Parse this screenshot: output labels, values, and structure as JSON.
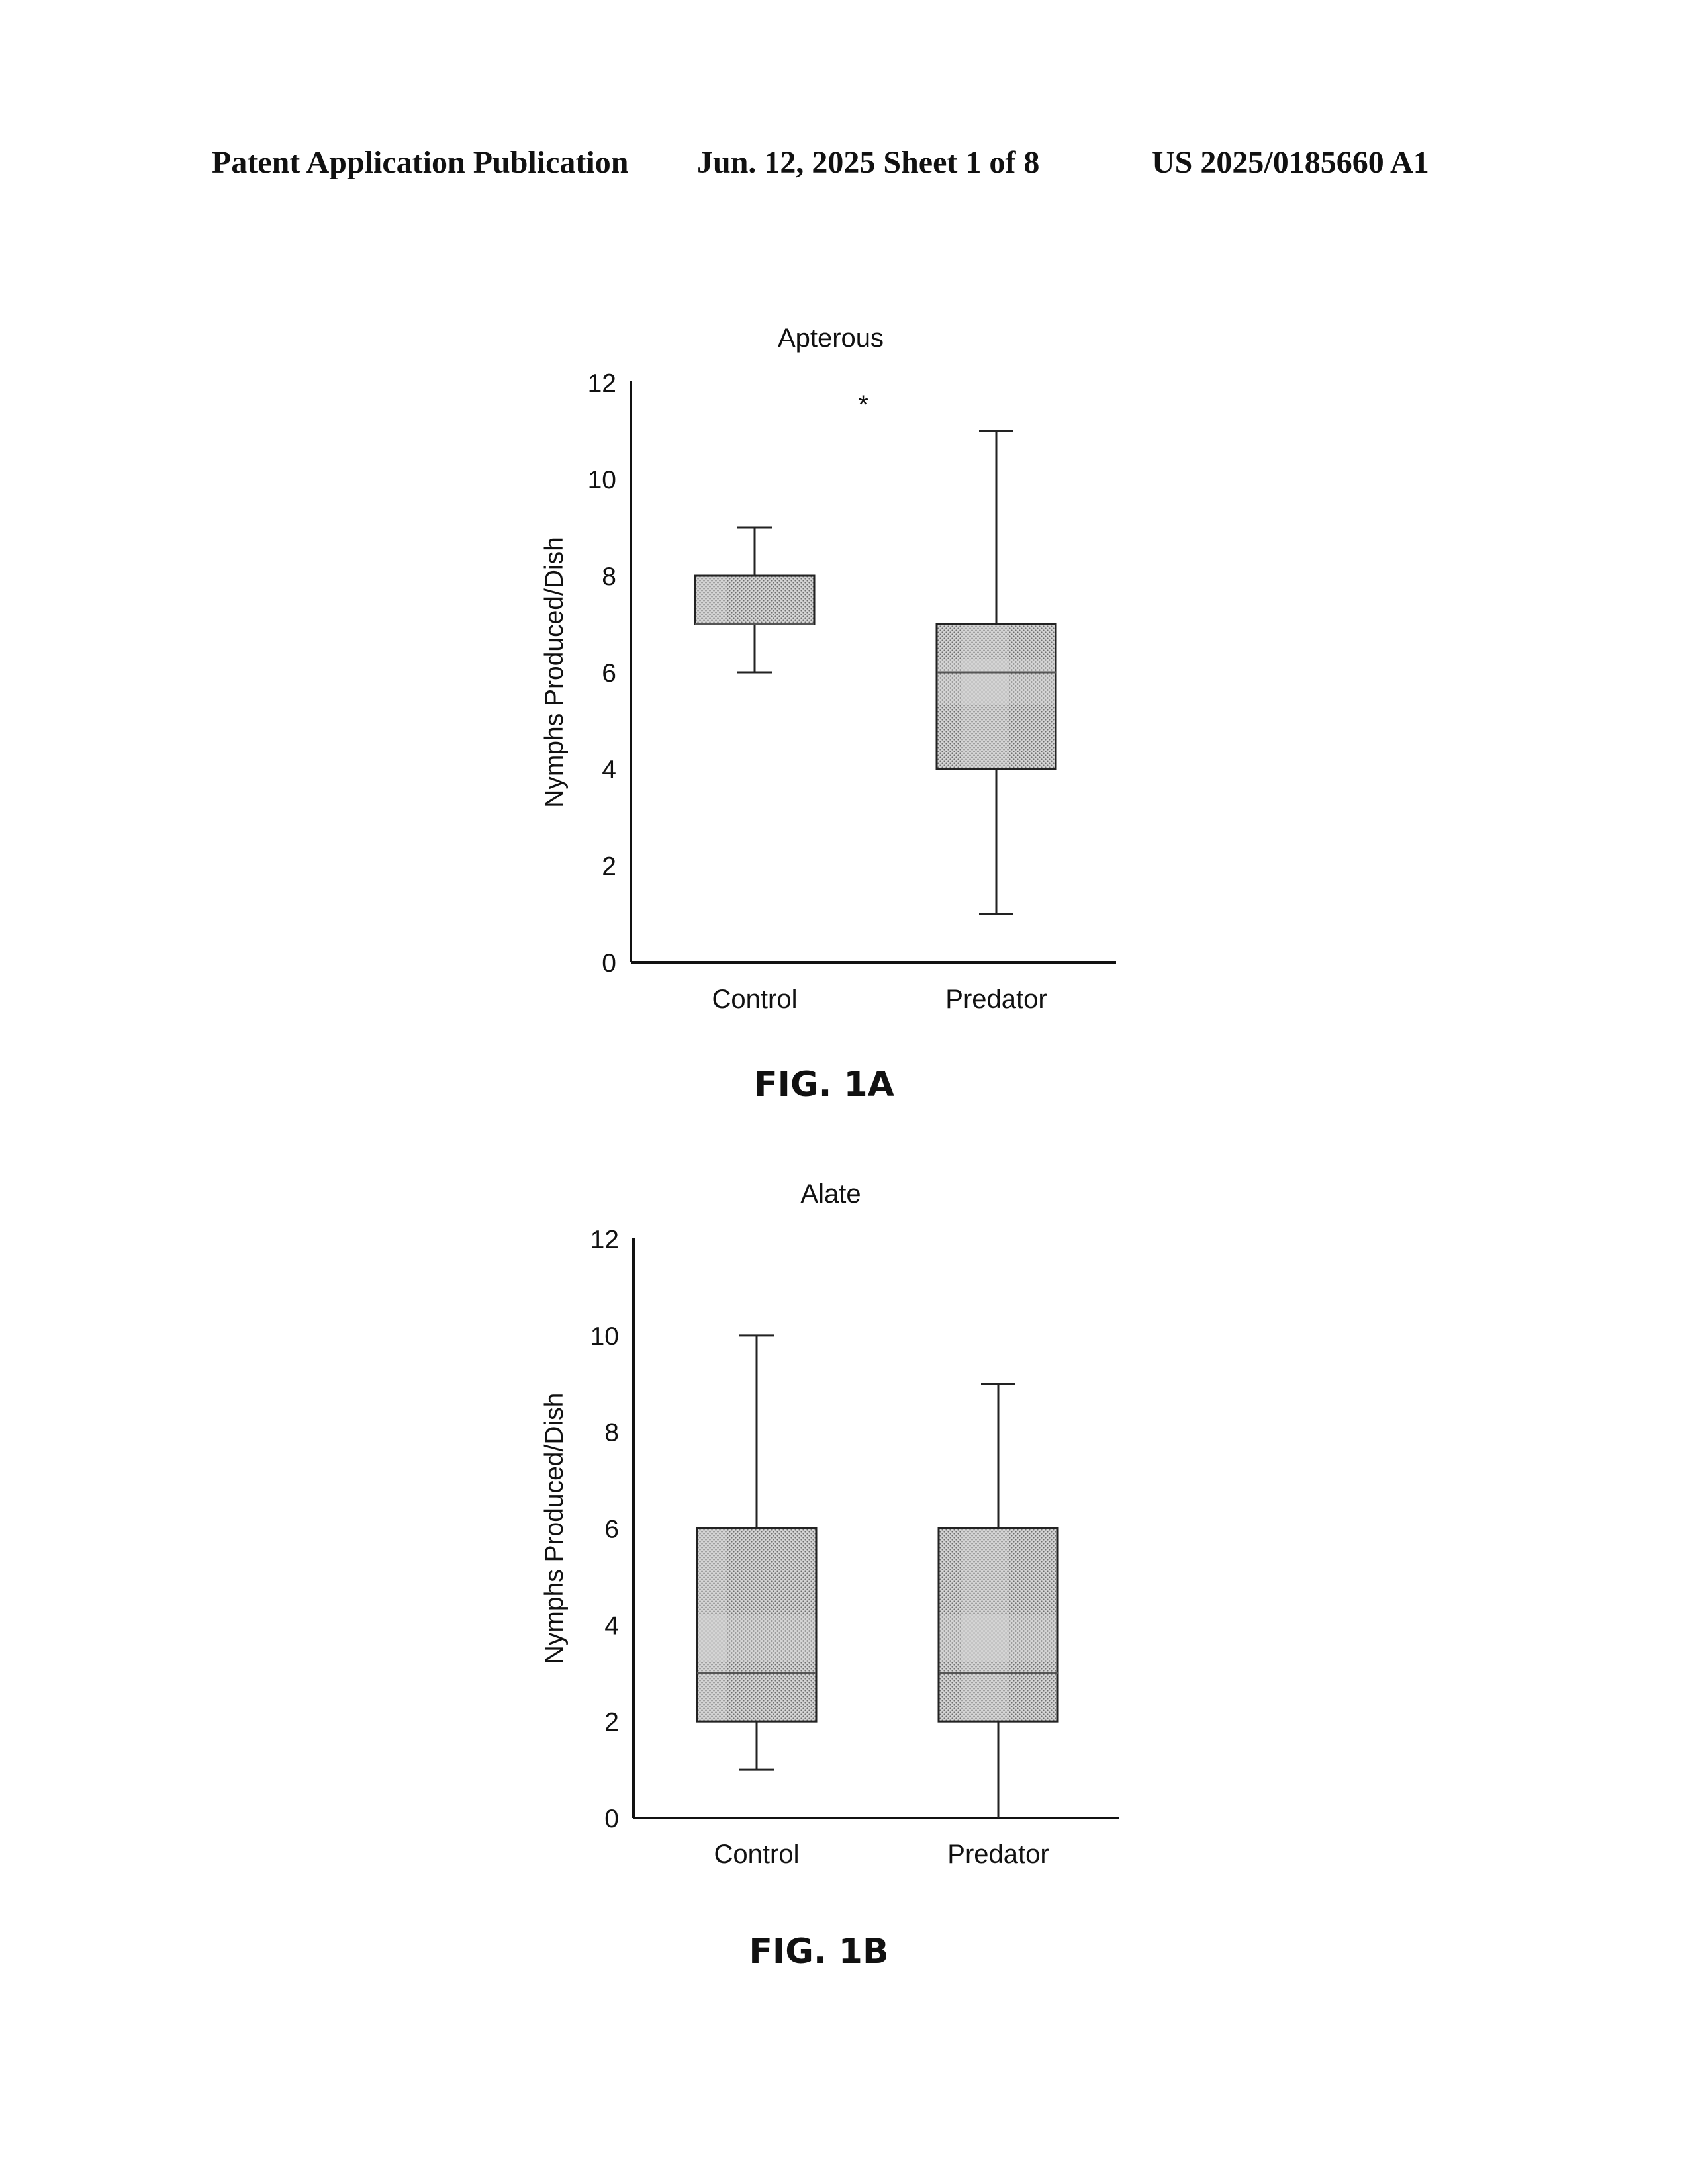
{
  "header": {
    "left": "Patent Application Publication",
    "middle": "Jun. 12, 2025  Sheet 1 of 8",
    "right": "US 2025/0185660 A1"
  },
  "chart_data": [
    {
      "type": "box",
      "figure_label": "FIG. 1A",
      "title": "Apterous",
      "xlabel": "",
      "ylabel": "Nymphs Produced/Dish",
      "ylim": [
        0,
        12
      ],
      "yticks": [
        0,
        2,
        4,
        6,
        8,
        10,
        12
      ],
      "categories": [
        "Control",
        "Predator"
      ],
      "boxes": [
        {
          "category": "Control",
          "min": 6,
          "q1": 7,
          "median": 7,
          "q3": 8,
          "max": 9
        },
        {
          "category": "Predator",
          "min": 1,
          "q1": 4,
          "median": 6,
          "q3": 7,
          "max": 11
        }
      ],
      "annotation": "*",
      "box_fill": "#bdbdbd"
    },
    {
      "type": "box",
      "figure_label": "FIG. 1B",
      "title": "Alate",
      "xlabel": "",
      "ylabel": "Nymphs Produced/Dish",
      "ylim": [
        0,
        12
      ],
      "yticks": [
        0,
        2,
        4,
        6,
        8,
        10,
        12
      ],
      "categories": [
        "Control",
        "Predator"
      ],
      "boxes": [
        {
          "category": "Control",
          "min": 1,
          "q1": 2,
          "median": 3,
          "q3": 6,
          "max": 10
        },
        {
          "category": "Predator",
          "min": 0,
          "q1": 2,
          "median": 3,
          "q3": 6,
          "max": 9
        }
      ],
      "annotation": "",
      "box_fill": "#bdbdbd"
    }
  ]
}
